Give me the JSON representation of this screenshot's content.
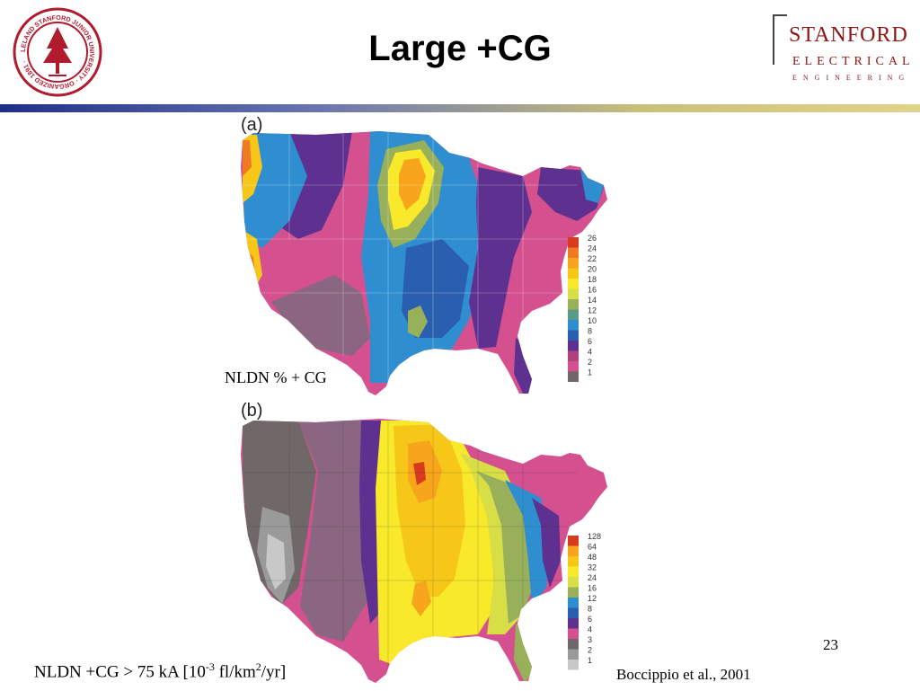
{
  "slide": {
    "title": "Large +CG",
    "page_number": "23",
    "citation": "Boccippio et al., 2001"
  },
  "logo": {
    "name": "STANFORD",
    "line1": "ELECTRICAL",
    "line2": "ENGINEERING"
  },
  "seal": {
    "text": "LELAND STANFORD JUNIOR UNIVERSITY · ORGANIZED 1891 ·"
  },
  "panel_a": {
    "label": "(a)",
    "caption": "NLDN % + CG",
    "legend": {
      "values": [
        "26",
        "24",
        "22",
        "20",
        "18",
        "16",
        "14",
        "12",
        "10",
        "8",
        "6",
        "4",
        "2",
        "1"
      ],
      "colors": [
        "#d83a1e",
        "#ee7a22",
        "#f6a51c",
        "#f6c718",
        "#f8e92a",
        "#d8de46",
        "#98b05a",
        "#5a9a86",
        "#2f8ed0",
        "#2a5fb0",
        "#5e3090",
        "#b0407e",
        "#d4508e",
        "#706868"
      ]
    }
  },
  "panel_b": {
    "label": "(b)",
    "legend": {
      "values": [
        "128",
        "64",
        "48",
        "32",
        "24",
        "16",
        "12",
        "8",
        "6",
        "4",
        "3",
        "2",
        "1"
      ],
      "colors": [
        "#d83a1e",
        "#f6a51c",
        "#f6c718",
        "#f8e92a",
        "#d8de46",
        "#98b05a",
        "#2f8ed0",
        "#2a5fb0",
        "#5e3090",
        "#d4508e",
        "#706868",
        "#9a9a9a",
        "#c8c8c8"
      ]
    }
  },
  "caption_b": {
    "pre": "NLDN +CG > 75 kA [10",
    "exp1": "-3",
    "mid": " fl/km",
    "exp2": "2",
    "post": "/yr]"
  }
}
